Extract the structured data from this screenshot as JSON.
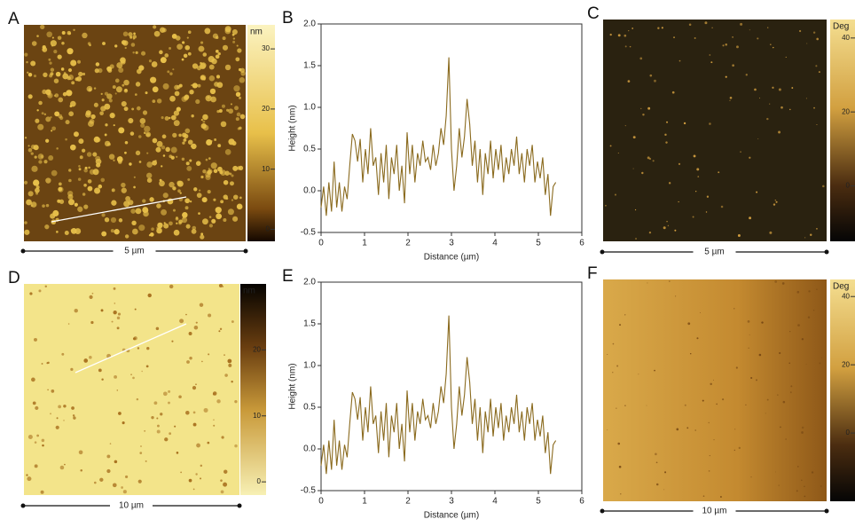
{
  "images": [
    {
      "label": "A",
      "unit": "nm",
      "scale_bar": "5 µm",
      "colorbar": {
        "lim": [
          -2,
          34
        ],
        "ticks": [
          0,
          10,
          20,
          30
        ]
      }
    },
    {
      "label": "D",
      "unit": "nm",
      "scale_bar": "10 µm",
      "colorbar": {
        "lim": [
          -2,
          30
        ],
        "ticks": [
          0,
          10,
          20
        ]
      }
    },
    {
      "label": "C",
      "unit": "Deg",
      "scale_bar": "5 µm",
      "colorbar": {
        "lim": [
          -15,
          45
        ],
        "ticks": [
          0,
          20,
          40
        ]
      }
    },
    {
      "label": "F",
      "unit": "Deg",
      "scale_bar": "10 µm",
      "colorbar": {
        "lim": [
          -20,
          45
        ],
        "ticks": [
          0,
          20,
          40
        ]
      }
    }
  ],
  "chart_data": [
    {
      "type": "line",
      "label": "B",
      "x_label": "Distance (µm)",
      "y_label": "Height (nm)",
      "color": "#8a6a1e",
      "xlim": [
        0,
        6
      ],
      "xticks": [
        0,
        1,
        2,
        3,
        4,
        5,
        6
      ],
      "ylim": [
        -0.5,
        2.0
      ],
      "yticks": [
        -0.5,
        {
          "value": 0,
          "label": "0.0"
        },
        0.5,
        {
          "value": 1,
          "label": "1.0"
        },
        1.5,
        {
          "value": 2,
          "label": "2.0"
        }
      ],
      "x": [
        0,
        0.06,
        0.12,
        0.18,
        0.24,
        0.3,
        0.36,
        0.42,
        0.48,
        0.54,
        0.6,
        0.66,
        0.72,
        0.78,
        0.84,
        0.9,
        0.96,
        1.02,
        1.08,
        1.14,
        1.2,
        1.26,
        1.32,
        1.38,
        1.44,
        1.5,
        1.56,
        1.62,
        1.68,
        1.74,
        1.8,
        1.86,
        1.92,
        1.98,
        2.04,
        2.1,
        2.16,
        2.22,
        2.28,
        2.34,
        2.4,
        2.46,
        2.52,
        2.58,
        2.64,
        2.7,
        2.76,
        2.82,
        2.88,
        2.94,
        3.0,
        3.06,
        3.12,
        3.18,
        3.24,
        3.3,
        3.36,
        3.42,
        3.48,
        3.54,
        3.6,
        3.66,
        3.72,
        3.78,
        3.84,
        3.9,
        3.96,
        4.02,
        4.08,
        4.14,
        4.2,
        4.26,
        4.32,
        4.38,
        4.44,
        4.5,
        4.56,
        4.62,
        4.68,
        4.74,
        4.8,
        4.86,
        4.92,
        4.98,
        5.04,
        5.1,
        5.16,
        5.22,
        5.28,
        5.34,
        5.4
      ],
      "values": [
        -0.2,
        0.05,
        -0.3,
        0.1,
        -0.25,
        0.35,
        -0.2,
        0.1,
        -0.25,
        0.05,
        -0.1,
        0.3,
        0.68,
        0.6,
        0.35,
        0.62,
        0.1,
        0.5,
        0.2,
        0.75,
        0.3,
        0.4,
        -0.05,
        0.45,
        0.1,
        0.55,
        -0.1,
        0.4,
        0.2,
        0.55,
        0,
        0.3,
        -0.15,
        0.7,
        0.2,
        0.55,
        0.1,
        0.45,
        0.3,
        0.6,
        0.35,
        0.4,
        0.25,
        0.55,
        0.3,
        0.45,
        0.75,
        0.55,
        0.9,
        1.6,
        0.5,
        0.0,
        0.3,
        0.75,
        0.4,
        0.65,
        1.1,
        0.8,
        0.3,
        0.6,
        0.1,
        0.5,
        -0.05,
        0.45,
        0.2,
        0.6,
        0.15,
        0.5,
        0.25,
        0.55,
        0.1,
        0.4,
        0.2,
        0.5,
        0.3,
        0.65,
        0.2,
        0.45,
        0.1,
        0.5,
        0.3,
        0.55,
        0.1,
        0.35,
        0.15,
        0.4,
        -0.05,
        0.2,
        -0.3,
        0.05,
        0.1
      ]
    },
    {
      "type": "line",
      "label": "E",
      "x_label": "Distance (µm)",
      "y_label": "Height (nm)",
      "color": "#8a6a1e",
      "xlim": [
        0,
        6
      ],
      "xticks": [
        0,
        1,
        2,
        3,
        4,
        5,
        6
      ],
      "ylim": [
        -0.5,
        2.0
      ],
      "yticks": [
        -0.5,
        {
          "value": 0,
          "label": "0.0"
        },
        0.5,
        {
          "value": 1,
          "label": "1.0"
        },
        1.5,
        {
          "value": 2,
          "label": "2.0"
        }
      ],
      "x": [
        0,
        0.06,
        0.12,
        0.18,
        0.24,
        0.3,
        0.36,
        0.42,
        0.48,
        0.54,
        0.6,
        0.66,
        0.72,
        0.78,
        0.84,
        0.9,
        0.96,
        1.02,
        1.08,
        1.14,
        1.2,
        1.26,
        1.32,
        1.38,
        1.44,
        1.5,
        1.56,
        1.62,
        1.68,
        1.74,
        1.8,
        1.86,
        1.92,
        1.98,
        2.04,
        2.1,
        2.16,
        2.22,
        2.28,
        2.34,
        2.4,
        2.46,
        2.52,
        2.58,
        2.64,
        2.7,
        2.76,
        2.82,
        2.88,
        2.94,
        3.0,
        3.06,
        3.12,
        3.18,
        3.24,
        3.3,
        3.36,
        3.42,
        3.48,
        3.54,
        3.6,
        3.66,
        3.72,
        3.78,
        3.84,
        3.9,
        3.96,
        4.02,
        4.08,
        4.14,
        4.2,
        4.26,
        4.32,
        4.38,
        4.44,
        4.5,
        4.56,
        4.62,
        4.68,
        4.74,
        4.8,
        4.86,
        4.92,
        4.98,
        5.04,
        5.1,
        5.16,
        5.22,
        5.28,
        5.34,
        5.4
      ],
      "values": [
        -0.2,
        0.05,
        -0.3,
        0.1,
        -0.25,
        0.35,
        -0.2,
        0.1,
        -0.25,
        0.05,
        -0.1,
        0.3,
        0.68,
        0.6,
        0.35,
        0.62,
        0.1,
        0.5,
        0.2,
        0.75,
        0.3,
        0.4,
        -0.05,
        0.45,
        0.1,
        0.55,
        -0.1,
        0.4,
        0.2,
        0.55,
        0,
        0.3,
        -0.15,
        0.7,
        0.2,
        0.55,
        0.1,
        0.45,
        0.3,
        0.6,
        0.35,
        0.4,
        0.25,
        0.55,
        0.3,
        0.45,
        0.75,
        0.55,
        0.9,
        1.6,
        0.5,
        0.0,
        0.3,
        0.75,
        0.4,
        0.65,
        1.1,
        0.8,
        0.3,
        0.6,
        0.1,
        0.5,
        -0.05,
        0.45,
        0.2,
        0.6,
        0.15,
        0.5,
        0.25,
        0.55,
        0.1,
        0.4,
        0.2,
        0.5,
        0.3,
        0.65,
        0.2,
        0.45,
        0.1,
        0.5,
        0.3,
        0.55,
        0.1,
        0.35,
        0.15,
        0.4,
        -0.05,
        0.2,
        -0.3,
        0.05,
        0.1
      ]
    }
  ]
}
